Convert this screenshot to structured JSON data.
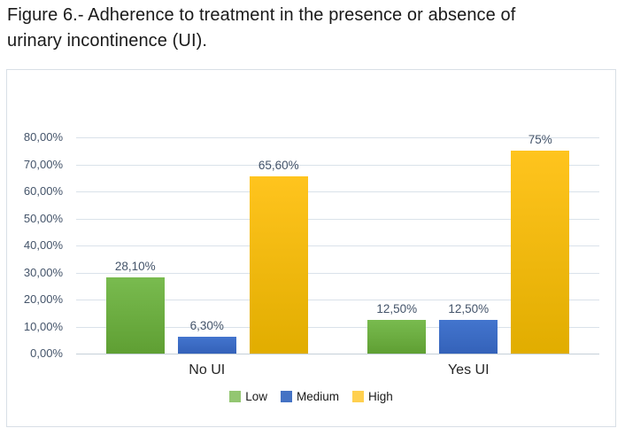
{
  "figure": {
    "caption_line1": "Figure 6.- Adherence to treatment in the presence or absence of",
    "caption_line2": "urinary incontinence (UI)."
  },
  "chart_data": {
    "type": "bar",
    "title": "",
    "categories": [
      "No UI",
      "Yes UI"
    ],
    "series": [
      {
        "name": "Low",
        "values": [
          28.1,
          12.5
        ],
        "data_labels": [
          "28,10%",
          "12,50%"
        ],
        "color_top": "#79BB4F",
        "color_bottom": "#5F9F33",
        "legend_color": "#93C671"
      },
      {
        "name": "Medium",
        "values": [
          6.3,
          12.5
        ],
        "data_labels": [
          "6,30%",
          "12,50%"
        ],
        "color_top": "#4375CE",
        "color_bottom": "#3462B9",
        "legend_color": "#4472C4"
      },
      {
        "name": "High",
        "values": [
          65.6,
          75
        ],
        "data_labels": [
          "65,60%",
          "75%"
        ],
        "color_top": "#FFC41E",
        "color_bottom": "#E1AD00",
        "legend_color": "#FFD04F"
      }
    ],
    "y_axis": {
      "ticks": [
        "80,00%",
        "70,00%",
        "60,00%",
        "50,00%",
        "40,00%",
        "30,00%",
        "20,00%",
        "10,00%",
        "0,00%"
      ],
      "min": 0,
      "max": 80
    },
    "grid": true,
    "legend_position": "bottom",
    "axis_label_color": "#44546A",
    "category_label_color": "#262626",
    "gridline_color": "#DAE2EA"
  }
}
